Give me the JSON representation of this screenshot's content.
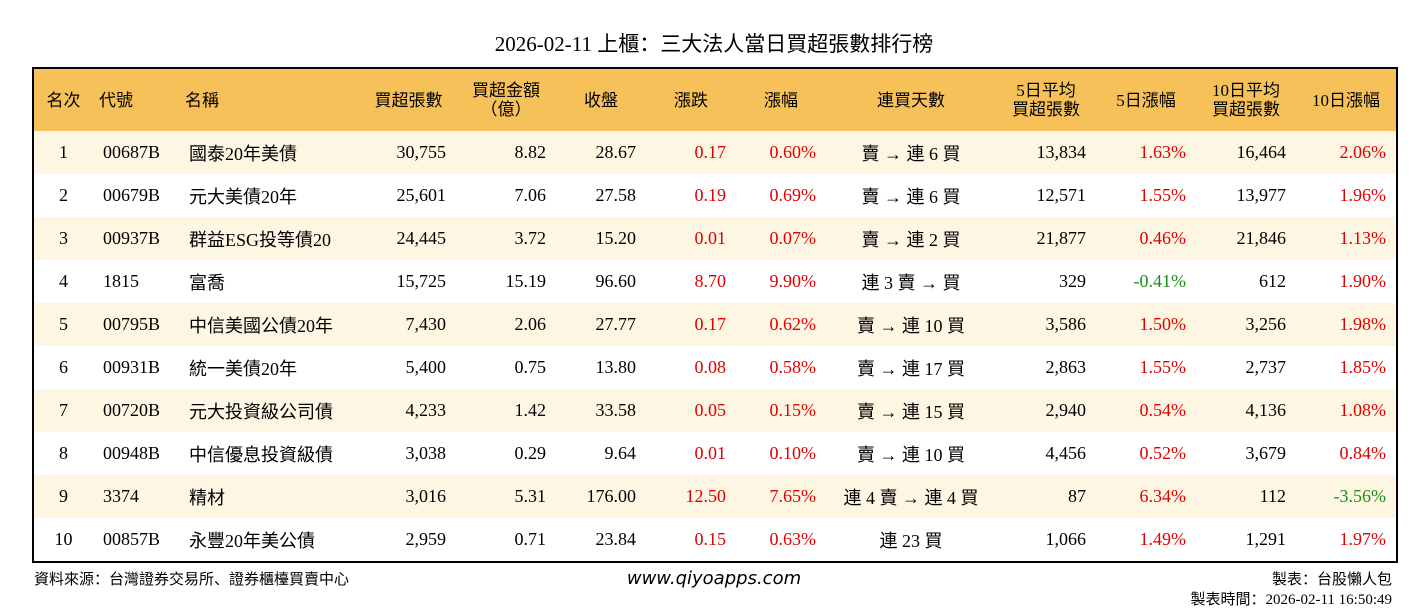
{
  "title": "2026-02-11 上櫃：三大法人當日買超張數排行榜",
  "table": {
    "header": [
      [
        "名次"
      ],
      [
        "代號"
      ],
      [
        "名稱"
      ],
      [
        "買超張數"
      ],
      [
        "買超金額",
        "（億）"
      ],
      [
        "收盤"
      ],
      [
        "漲跌"
      ],
      [
        "漲幅"
      ],
      [
        "連買天數"
      ],
      [
        "5日平均",
        "買超張數"
      ],
      [
        "5日漲幅"
      ],
      [
        "10日平均",
        "買超張數"
      ],
      [
        "10日漲幅"
      ]
    ],
    "rows": [
      [
        "1",
        "00687B",
        "國泰20年美債",
        "30,755",
        "8.82",
        "28.67",
        "0.17",
        "0.60%",
        "賣 → 連 6 買",
        "13,834",
        "1.63%",
        "16,464",
        "2.06%"
      ],
      [
        "2",
        "00679B",
        "元大美債20年",
        "25,601",
        "7.06",
        "27.58",
        "0.19",
        "0.69%",
        "賣 → 連 6 買",
        "12,571",
        "1.55%",
        "13,977",
        "1.96%"
      ],
      [
        "3",
        "00937B",
        "群益ESG投等債20",
        "24,445",
        "3.72",
        "15.20",
        "0.01",
        "0.07%",
        "賣 → 連 2 買",
        "21,877",
        "0.46%",
        "21,846",
        "1.13%"
      ],
      [
        "4",
        "1815",
        "富喬",
        "15,725",
        "15.19",
        "96.60",
        "8.70",
        "9.90%",
        "連 3 賣 → 買",
        "329",
        "-0.41%",
        "612",
        "1.90%"
      ],
      [
        "5",
        "00795B",
        "中信美國公債20年",
        "7,430",
        "2.06",
        "27.77",
        "0.17",
        "0.62%",
        "賣 → 連 10 買",
        "3,586",
        "1.50%",
        "3,256",
        "1.98%"
      ],
      [
        "6",
        "00931B",
        "統一美債20年",
        "5,400",
        "0.75",
        "13.80",
        "0.08",
        "0.58%",
        "賣 → 連 17 買",
        "2,863",
        "1.55%",
        "2,737",
        "1.85%"
      ],
      [
        "7",
        "00720B",
        "元大投資級公司債",
        "4,233",
        "1.42",
        "33.58",
        "0.05",
        "0.15%",
        "賣 → 連 15 買",
        "2,940",
        "0.54%",
        "4,136",
        "1.08%"
      ],
      [
        "8",
        "00948B",
        "中信優息投資級債",
        "3,038",
        "0.29",
        "9.64",
        "0.01",
        "0.10%",
        "賣 → 連 10 買",
        "4,456",
        "0.52%",
        "3,679",
        "0.84%"
      ],
      [
        "9",
        "3374",
        "精材",
        "3,016",
        "5.31",
        "176.00",
        "12.50",
        "7.65%",
        "連 4 賣 → 連 4 買",
        "87",
        "6.34%",
        "112",
        "-3.56%"
      ],
      [
        "10",
        "00857B",
        "永豐20年美公債",
        "2,959",
        "0.71",
        "23.84",
        "0.15",
        "0.63%",
        "連 23 買",
        "1,066",
        "1.49%",
        "1,291",
        "1.97%"
      ]
    ]
  },
  "footer": {
    "source": "資料來源：台灣證券交易所、證券櫃檯買賣中心",
    "url": "www.qiyoapps.com",
    "maker": "製表：台股懶人包",
    "time": "製表時間：2026-02-11 16:50:49"
  }
}
